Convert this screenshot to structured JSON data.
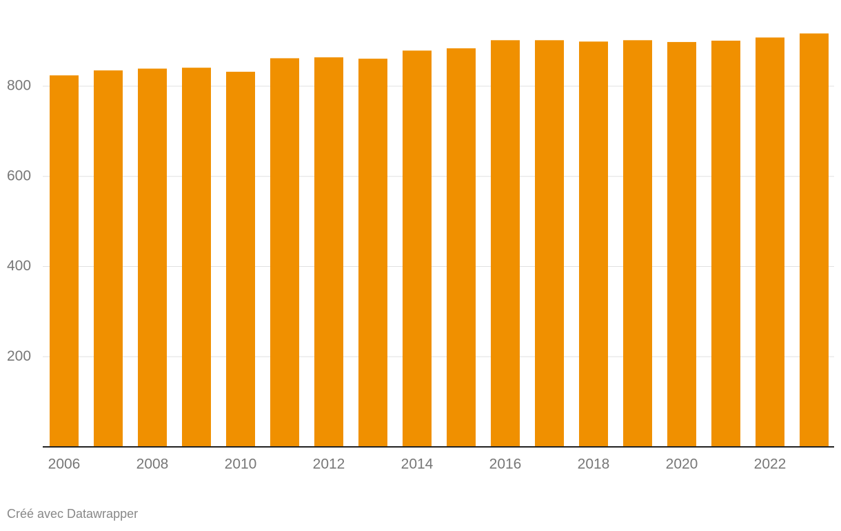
{
  "chart_data": {
    "type": "bar",
    "categories": [
      "2006",
      null,
      "2008",
      null,
      "2010",
      null,
      "2012",
      null,
      "2014",
      null,
      "2016",
      null,
      "2018",
      null,
      "2020",
      null,
      "2022",
      null
    ],
    "values": [
      824,
      835,
      839,
      841,
      832,
      862,
      864,
      861,
      879,
      884,
      902,
      902,
      899,
      902,
      898,
      901,
      908,
      917
    ],
    "color": "#f09000",
    "ylim": [
      0,
      930
    ],
    "yticks": [
      200,
      400,
      600,
      800
    ],
    "grid": true,
    "credit": "Créé avec Datawrapper"
  }
}
